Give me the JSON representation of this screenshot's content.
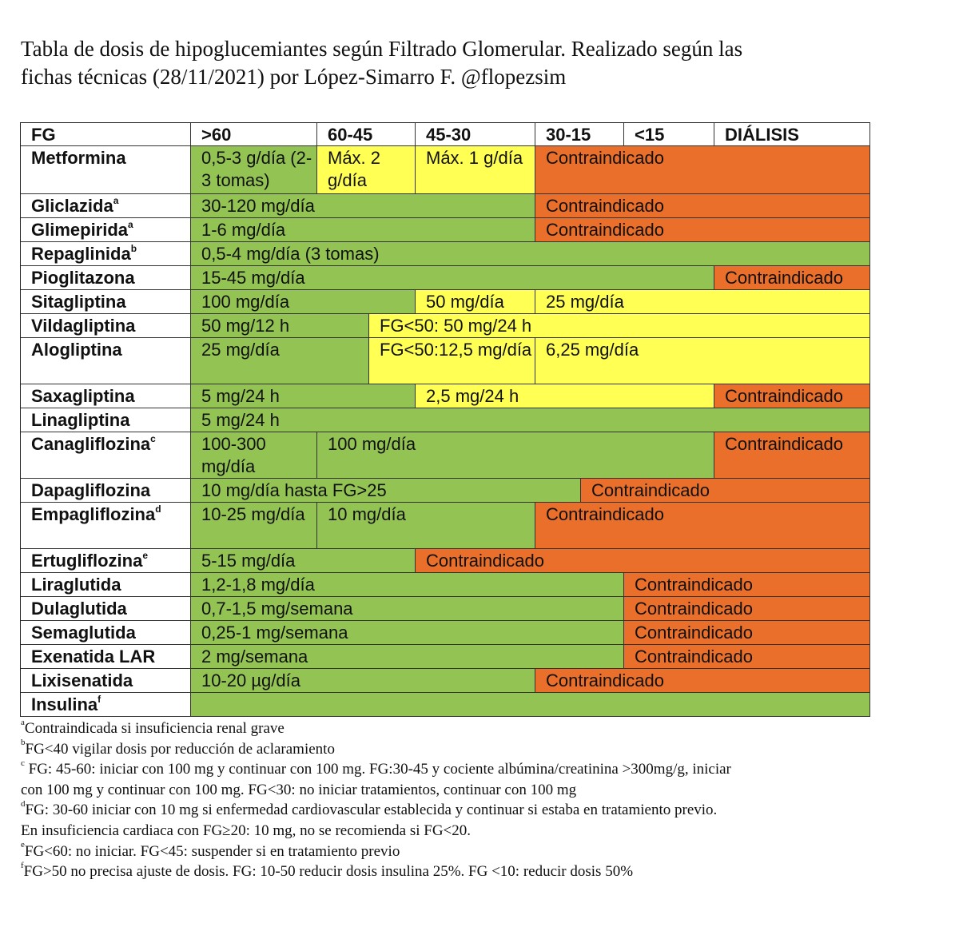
{
  "title": {
    "line1": "Tabla de dosis de hipoglucemiantes según Filtrado Glomerular. Realizado según las",
    "line2": "fichas técnicas (28/11/2021) por López-Simarro F. @flopezsim"
  },
  "table": {
    "columns": [
      "FG",
      ">60",
      "60-45",
      "45-30",
      "30-15",
      "<15",
      "DIÁLISIS"
    ],
    "rows": [
      {
        "drug": "Metformina",
        "sup": "",
        "cells": [
          {
            "text": "0,5-3 g/día (2-3 tomas)",
            "color": "green"
          },
          {
            "text": "Máx. 2 g/día",
            "color": "yellow"
          },
          {
            "text": "Máx. 1 g/día",
            "color": "yellow"
          },
          {
            "text": "Contraindicado",
            "color": "orange"
          }
        ]
      },
      {
        "drug": "Gliclazida",
        "sup": "a",
        "cells": [
          {
            "text": "30-120 mg/día",
            "color": "green"
          },
          {
            "text": "Contraindicado",
            "color": "orange"
          }
        ]
      },
      {
        "drug": "Glimepirida",
        "sup": "a",
        "cells": [
          {
            "text": "1-6 mg/día",
            "color": "green"
          },
          {
            "text": "Contraindicado",
            "color": "orange"
          }
        ]
      },
      {
        "drug": "Repaglinida",
        "sup": "b",
        "cells": [
          {
            "text": "0,5-4 mg/día (3 tomas)",
            "color": "green"
          }
        ]
      },
      {
        "drug": "Pioglitazona",
        "sup": "",
        "cells": [
          {
            "text": "15-45 mg/día",
            "color": "green"
          },
          {
            "text": "Contraindicado",
            "color": "orange"
          }
        ]
      },
      {
        "drug": "Sitagliptina",
        "sup": "",
        "cells": [
          {
            "text": "100 mg/día",
            "color": "green"
          },
          {
            "text": "50 mg/día",
            "color": "yellow"
          },
          {
            "text": "25 mg/día",
            "color": "yellow"
          }
        ]
      },
      {
        "drug": "Vildagliptina",
        "sup": "",
        "cells": [
          {
            "text": "50 mg/12 h",
            "color": "green"
          },
          {
            "text": "FG<50: 50 mg/24 h",
            "color": "yellow"
          }
        ]
      },
      {
        "drug": "Alogliptina",
        "sup": "",
        "cells": [
          {
            "text": "25 mg/día",
            "color": "green"
          },
          {
            "text": "FG<50:12,5 mg/día",
            "color": "yellow"
          },
          {
            "text": "6,25 mg/día",
            "color": "yellow"
          }
        ]
      },
      {
        "drug": "Saxagliptina",
        "sup": "",
        "cells": [
          {
            "text": "5 mg/24 h",
            "color": "green"
          },
          {
            "text": "2,5 mg/24 h",
            "color": "yellow"
          },
          {
            "text": "Contraindicado",
            "color": "orange"
          }
        ]
      },
      {
        "drug": "Linagliptina",
        "sup": "",
        "cells": [
          {
            "text": "5 mg/24 h",
            "color": "green"
          }
        ]
      },
      {
        "drug": "Canagliflozina",
        "sup": "c",
        "cells": [
          {
            "text": "100-300 mg/día",
            "color": "green"
          },
          {
            "text": "100 mg/día",
            "color": "green"
          },
          {
            "text": "Contraindicado",
            "color": "orange"
          }
        ]
      },
      {
        "drug": "Dapagliflozina",
        "sup": "",
        "cells": [
          {
            "text": "10 mg/día hasta FG>25",
            "color": "green"
          },
          {
            "text": "Contraindicado",
            "color": "orange"
          }
        ]
      },
      {
        "drug": "Empagliflozina",
        "sup": "d",
        "cells": [
          {
            "text": "10-25 mg/día",
            "color": "green"
          },
          {
            "text": "10 mg/día",
            "color": "green"
          },
          {
            "text": "Contraindicado",
            "color": "orange"
          }
        ]
      },
      {
        "drug": "Ertugliflozina",
        "sup": "e",
        "cells": [
          {
            "text": "5-15 mg/día",
            "color": "green"
          },
          {
            "text": "Contraindicado",
            "color": "orange"
          }
        ]
      },
      {
        "drug": "Liraglutida",
        "sup": "",
        "cells": [
          {
            "text": "1,2-1,8 mg/día",
            "color": "green"
          },
          {
            "text": "Contraindicado",
            "color": "orange"
          }
        ]
      },
      {
        "drug": "Dulaglutida",
        "sup": "",
        "cells": [
          {
            "text": "0,7-1,5 mg/semana",
            "color": "green"
          },
          {
            "text": "Contraindicado",
            "color": "orange"
          }
        ]
      },
      {
        "drug": "Semaglutida",
        "sup": "",
        "cells": [
          {
            "text": "0,25-1 mg/semana",
            "color": "green"
          },
          {
            "text": "Contraindicado",
            "color": "orange"
          }
        ]
      },
      {
        "drug": "Exenatida LAR",
        "sup": "",
        "cells": [
          {
            "text": "2 mg/semana",
            "color": "green"
          },
          {
            "text": "Contraindicado",
            "color": "orange"
          }
        ]
      },
      {
        "drug": "Lixisenatida",
        "sup": "",
        "cells": [
          {
            "text": "10-20 µg/día",
            "color": "green"
          },
          {
            "text": "Contraindicado",
            "color": "orange"
          }
        ]
      },
      {
        "drug": "Insulina",
        "sup": "f",
        "cells": [
          {
            "text": "",
            "color": "green"
          }
        ]
      }
    ]
  },
  "colors": {
    "green": "#92c353",
    "yellow": "#ffff54",
    "orange": "#e96f2a"
  },
  "footnotes": [
    {
      "sup": "a",
      "lines": [
        "Contraindicada si insuficiencia renal grave"
      ]
    },
    {
      "sup": "b",
      "lines": [
        "FG<40 vigilar dosis por reducción de aclaramiento"
      ]
    },
    {
      "sup": "c",
      "lines": [
        " FG: 45-60: iniciar con 100 mg y continuar con 100 mg. FG:30-45 y cociente albúmina/creatinina >300mg/g, iniciar",
        "con 100 mg y continuar con 100 mg. FG<30: no iniciar tratamientos, continuar con 100 mg"
      ]
    },
    {
      "sup": "d",
      "lines": [
        "FG: 30-60 iniciar con 10 mg si enfermedad cardiovascular establecida y continuar si estaba en tratamiento previo.",
        "En insuficiencia cardiaca con FG≥20: 10 mg, no se recomienda si FG<20."
      ]
    },
    {
      "sup": "e",
      "lines": [
        "FG<60: no iniciar. FG<45: suspender si en tratamiento previo"
      ]
    },
    {
      "sup": "f",
      "lines": [
        "FG>50 no precisa ajuste de dosis. FG: 10-50 reducir dosis insulina 25%. FG <10: reducir dosis 50%"
      ]
    }
  ]
}
